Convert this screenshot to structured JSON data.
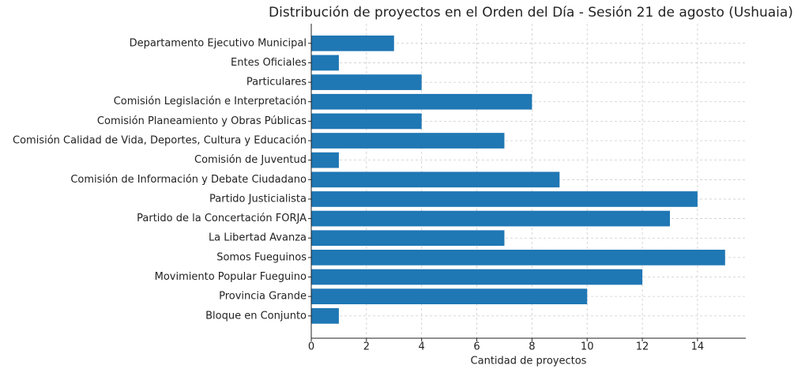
{
  "chart_data": {
    "type": "barh",
    "title": "Distribución de proyectos en el Orden del Día - Sesión 21 de agosto (Ushuaia)",
    "x_label": "Cantidad de proyectos",
    "categories": [
      "Departamento Ejecutivo Municipal",
      "Entes Oficiales",
      "Particulares",
      "Comisión Legislación e Interpretación",
      "Comisión Planeamiento y Obras Públicas",
      "Comisión Calidad de Vida, Deportes, Cultura y Educación",
      "Comisión de Juventud",
      "Comisión de Información y Debate Ciudadano",
      "Partido Justicialista",
      "Partido de la Concertación FORJA",
      "La Libertad Avanza",
      "Somos Fueguinos",
      "Movimiento Popular Fueguino",
      "Provincia Grande",
      "Bloque en Conjunto"
    ],
    "values": [
      3,
      1,
      4,
      8,
      4,
      7,
      1,
      9,
      14,
      13,
      7,
      15,
      12,
      10,
      1
    ],
    "color": "#1f77b4",
    "xlim": [
      0,
      15.75
    ],
    "xticks": [
      0,
      2,
      4,
      6,
      8,
      10,
      12,
      14
    ],
    "grid": true
  }
}
